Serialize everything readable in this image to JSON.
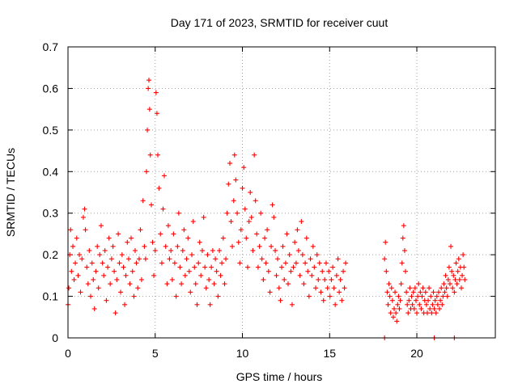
{
  "chart_data": {
    "type": "scatter",
    "title": "Day 171 of 2023, SRMTID for receiver cuut",
    "xlabel": "GPS time / hours",
    "ylabel": "SRMTID / TECUs",
    "xlim": [
      0,
      24.5
    ],
    "ylim": [
      0,
      0.7
    ],
    "xticks": [
      0,
      5,
      10,
      15,
      20
    ],
    "xtick_labels": [
      "0",
      "5",
      "10",
      "15",
      "20"
    ],
    "yticks": [
      0,
      0.1,
      0.2,
      0.3,
      0.4,
      0.5,
      0.6,
      0.7
    ],
    "ytick_labels": [
      "0",
      "0.1",
      "0.2",
      "0.3",
      "0.4",
      "0.5",
      "0.6",
      "0.7"
    ],
    "grid": true,
    "marker": "+",
    "series": [
      {
        "name": "SRMTID",
        "color": "#ff0000",
        "points": [
          [
            0.0,
            0.08
          ],
          [
            0.05,
            0.12
          ],
          [
            0.1,
            0.2
          ],
          [
            0.15,
            0.26
          ],
          [
            0.2,
            0.16
          ],
          [
            0.28,
            0.22
          ],
          [
            0.35,
            0.14
          ],
          [
            0.42,
            0.18
          ],
          [
            0.5,
            0.24
          ],
          [
            0.58,
            0.15
          ],
          [
            0.65,
            0.2
          ],
          [
            0.72,
            0.11
          ],
          [
            0.8,
            0.19
          ],
          [
            0.88,
            0.29
          ],
          [
            0.95,
            0.31
          ],
          [
            1.0,
            0.26
          ],
          [
            1.08,
            0.17
          ],
          [
            1.15,
            0.13
          ],
          [
            1.22,
            0.21
          ],
          [
            1.3,
            0.1
          ],
          [
            1.38,
            0.18
          ],
          [
            1.45,
            0.14
          ],
          [
            1.52,
            0.07
          ],
          [
            1.6,
            0.16
          ],
          [
            1.68,
            0.22
          ],
          [
            1.75,
            0.12
          ],
          [
            1.82,
            0.2
          ],
          [
            1.9,
            0.27
          ],
          [
            1.98,
            0.18
          ],
          [
            2.05,
            0.15
          ],
          [
            2.12,
            0.21
          ],
          [
            2.2,
            0.09
          ],
          [
            2.28,
            0.17
          ],
          [
            2.35,
            0.24
          ],
          [
            2.42,
            0.13
          ],
          [
            2.5,
            0.19
          ],
          [
            2.58,
            0.22
          ],
          [
            2.65,
            0.16
          ],
          [
            2.72,
            0.06
          ],
          [
            2.8,
            0.14
          ],
          [
            2.88,
            0.25
          ],
          [
            2.95,
            0.18
          ],
          [
            3.02,
            0.11
          ],
          [
            3.1,
            0.2
          ],
          [
            3.18,
            0.17
          ],
          [
            3.25,
            0.08
          ],
          [
            3.32,
            0.15
          ],
          [
            3.4,
            0.23
          ],
          [
            3.48,
            0.19
          ],
          [
            3.55,
            0.13
          ],
          [
            3.62,
            0.24
          ],
          [
            3.7,
            0.16
          ],
          [
            3.78,
            0.1
          ],
          [
            3.85,
            0.21
          ],
          [
            3.92,
            0.18
          ],
          [
            4.0,
            0.12
          ],
          [
            4.08,
            0.19
          ],
          [
            4.15,
            0.26
          ],
          [
            4.22,
            0.14
          ],
          [
            4.3,
            0.33
          ],
          [
            4.38,
            0.22
          ],
          [
            4.45,
            0.19
          ],
          [
            4.5,
            0.4
          ],
          [
            4.55,
            0.5
          ],
          [
            4.6,
            0.6
          ],
          [
            4.64,
            0.62
          ],
          [
            4.68,
            0.55
          ],
          [
            4.72,
            0.44
          ],
          [
            4.78,
            0.32
          ],
          [
            4.85,
            0.23
          ],
          [
            4.92,
            0.15
          ],
          [
            5.0,
            0.21
          ],
          [
            5.05,
            0.59
          ],
          [
            5.1,
            0.54
          ],
          [
            5.15,
            0.44
          ],
          [
            5.22,
            0.36
          ],
          [
            5.3,
            0.25
          ],
          [
            5.38,
            0.18
          ],
          [
            5.45,
            0.31
          ],
          [
            5.52,
            0.39
          ],
          [
            5.6,
            0.22
          ],
          [
            5.68,
            0.13
          ],
          [
            5.75,
            0.27
          ],
          [
            5.82,
            0.19
          ],
          [
            5.9,
            0.21
          ],
          [
            5.98,
            0.14
          ],
          [
            6.05,
            0.25
          ],
          [
            6.12,
            0.18
          ],
          [
            6.2,
            0.1
          ],
          [
            6.28,
            0.22
          ],
          [
            6.35,
            0.3
          ],
          [
            6.42,
            0.17
          ],
          [
            6.5,
            0.13
          ],
          [
            6.58,
            0.21
          ],
          [
            6.65,
            0.26
          ],
          [
            6.72,
            0.15
          ],
          [
            6.8,
            0.19
          ],
          [
            6.88,
            0.24
          ],
          [
            6.95,
            0.16
          ],
          [
            7.02,
            0.11
          ],
          [
            7.1,
            0.2
          ],
          [
            7.18,
            0.28
          ],
          [
            7.25,
            0.17
          ],
          [
            7.32,
            0.13
          ],
          [
            7.4,
            0.08
          ],
          [
            7.48,
            0.18
          ],
          [
            7.55,
            0.23
          ],
          [
            7.62,
            0.15
          ],
          [
            7.7,
            0.21
          ],
          [
            7.78,
            0.29
          ],
          [
            7.85,
            0.17
          ],
          [
            7.92,
            0.12
          ],
          [
            8.0,
            0.2
          ],
          [
            8.08,
            0.14
          ],
          [
            8.15,
            0.08
          ],
          [
            8.22,
            0.17
          ],
          [
            8.3,
            0.21
          ],
          [
            8.38,
            0.13
          ],
          [
            8.45,
            0.19
          ],
          [
            8.52,
            0.16
          ],
          [
            8.6,
            0.1
          ],
          [
            8.68,
            0.21
          ],
          [
            8.75,
            0.15
          ],
          [
            8.82,
            0.18
          ],
          [
            8.9,
            0.24
          ],
          [
            8.98,
            0.13
          ],
          [
            9.05,
            0.19
          ],
          [
            9.12,
            0.3
          ],
          [
            9.2,
            0.37
          ],
          [
            9.28,
            0.42
          ],
          [
            9.35,
            0.28
          ],
          [
            9.42,
            0.22
          ],
          [
            9.5,
            0.33
          ],
          [
            9.55,
            0.44
          ],
          [
            9.62,
            0.38
          ],
          [
            9.7,
            0.3
          ],
          [
            9.78,
            0.23
          ],
          [
            9.85,
            0.18
          ],
          [
            9.92,
            0.26
          ],
          [
            10.0,
            0.36
          ],
          [
            10.08,
            0.41
          ],
          [
            10.15,
            0.31
          ],
          [
            10.22,
            0.24
          ],
          [
            10.3,
            0.17
          ],
          [
            10.38,
            0.28
          ],
          [
            10.45,
            0.35
          ],
          [
            10.52,
            0.29
          ],
          [
            10.6,
            0.21
          ],
          [
            10.68,
            0.44
          ],
          [
            10.75,
            0.33
          ],
          [
            10.82,
            0.25
          ],
          [
            10.9,
            0.17
          ],
          [
            10.98,
            0.22
          ],
          [
            11.05,
            0.3
          ],
          [
            11.12,
            0.19
          ],
          [
            11.2,
            0.14
          ],
          [
            11.28,
            0.24
          ],
          [
            11.35,
            0.18
          ],
          [
            11.42,
            0.26
          ],
          [
            11.5,
            0.16
          ],
          [
            11.58,
            0.11
          ],
          [
            11.65,
            0.22
          ],
          [
            11.72,
            0.32
          ],
          [
            11.8,
            0.29
          ],
          [
            11.88,
            0.21
          ],
          [
            11.95,
            0.15
          ],
          [
            12.02,
            0.19
          ],
          [
            12.1,
            0.12
          ],
          [
            12.18,
            0.09
          ],
          [
            12.25,
            0.17
          ],
          [
            12.32,
            0.22
          ],
          [
            12.4,
            0.14
          ],
          [
            12.48,
            0.18
          ],
          [
            12.55,
            0.25
          ],
          [
            12.62,
            0.13
          ],
          [
            12.7,
            0.2
          ],
          [
            12.78,
            0.16
          ],
          [
            12.85,
            0.08
          ],
          [
            12.92,
            0.17
          ],
          [
            13.0,
            0.23
          ],
          [
            13.08,
            0.18
          ],
          [
            13.15,
            0.26
          ],
          [
            13.22,
            0.21
          ],
          [
            13.3,
            0.15
          ],
          [
            13.38,
            0.28
          ],
          [
            13.45,
            0.2
          ],
          [
            13.52,
            0.13
          ],
          [
            13.6,
            0.18
          ],
          [
            13.68,
            0.24
          ],
          [
            13.75,
            0.16
          ],
          [
            13.82,
            0.1
          ],
          [
            13.9,
            0.19
          ],
          [
            13.98,
            0.15
          ],
          [
            14.05,
            0.22
          ],
          [
            14.12,
            0.17
          ],
          [
            14.2,
            0.12
          ],
          [
            14.28,
            0.2
          ],
          [
            14.35,
            0.14
          ],
          [
            14.42,
            0.18
          ],
          [
            14.5,
            0.11
          ],
          [
            14.58,
            0.16
          ],
          [
            14.65,
            0.09
          ],
          [
            14.72,
            0.14
          ],
          [
            14.8,
            0.18
          ],
          [
            14.88,
            0.12
          ],
          [
            14.95,
            0.16
          ],
          [
            15.02,
            0.1
          ],
          [
            15.1,
            0.14
          ],
          [
            15.18,
            0.17
          ],
          [
            15.25,
            0.12
          ],
          [
            15.32,
            0.08
          ],
          [
            15.4,
            0.15
          ],
          [
            15.48,
            0.19
          ],
          [
            15.55,
            0.11
          ],
          [
            15.62,
            0.14
          ],
          [
            15.7,
            0.09
          ],
          [
            15.78,
            0.16
          ],
          [
            15.85,
            0.12
          ],
          [
            15.92,
            0.18
          ],
          [
            18.15,
            0.19
          ],
          [
            18.2,
            0.23
          ],
          [
            18.25,
            0.16
          ],
          [
            18.3,
            0.11
          ],
          [
            18.35,
            0.08
          ],
          [
            18.4,
            0.13
          ],
          [
            18.45,
            0.1
          ],
          [
            18.5,
            0.06
          ],
          [
            18.55,
            0.12
          ],
          [
            18.6,
            0.09
          ],
          [
            18.65,
            0.05
          ],
          [
            18.7,
            0.07
          ],
          [
            18.75,
            0.11
          ],
          [
            18.8,
            0.06
          ],
          [
            18.85,
            0.04
          ],
          [
            18.9,
            0.08
          ],
          [
            18.95,
            0.1
          ],
          [
            19.0,
            0.07
          ],
          [
            19.05,
            0.09
          ],
          [
            19.1,
            0.13
          ],
          [
            19.15,
            0.18
          ],
          [
            19.2,
            0.24
          ],
          [
            19.25,
            0.27
          ],
          [
            19.3,
            0.21
          ],
          [
            19.35,
            0.16
          ],
          [
            19.4,
            0.11
          ],
          [
            19.45,
            0.08
          ],
          [
            19.5,
            0.06
          ],
          [
            19.55,
            0.09
          ],
          [
            19.6,
            0.12
          ],
          [
            19.65,
            0.07
          ],
          [
            19.7,
            0.1
          ],
          [
            19.75,
            0.08
          ],
          [
            19.8,
            0.11
          ],
          [
            19.85,
            0.07
          ],
          [
            19.9,
            0.12
          ],
          [
            19.95,
            0.09
          ],
          [
            20.0,
            0.06
          ],
          [
            20.05,
            0.1
          ],
          [
            20.1,
            0.13
          ],
          [
            20.15,
            0.08
          ],
          [
            20.2,
            0.11
          ],
          [
            20.25,
            0.07
          ],
          [
            20.3,
            0.1
          ],
          [
            20.35,
            0.12
          ],
          [
            20.4,
            0.06
          ],
          [
            20.45,
            0.09
          ],
          [
            20.5,
            0.11
          ],
          [
            20.55,
            0.08
          ],
          [
            20.6,
            0.06
          ],
          [
            20.65,
            0.09
          ],
          [
            20.7,
            0.12
          ],
          [
            20.75,
            0.07
          ],
          [
            20.8,
            0.1
          ],
          [
            20.85,
            0.06
          ],
          [
            20.9,
            0.08
          ],
          [
            20.95,
            0.11
          ],
          [
            21.0,
            0.07
          ],
          [
            21.05,
            0.09
          ],
          [
            21.1,
            0.06
          ],
          [
            21.15,
            0.1
          ],
          [
            21.2,
            0.08
          ],
          [
            21.25,
            0.11
          ],
          [
            21.3,
            0.07
          ],
          [
            21.35,
            0.09
          ],
          [
            21.4,
            0.12
          ],
          [
            21.45,
            0.08
          ],
          [
            21.5,
            0.1
          ],
          [
            21.55,
            0.13
          ],
          [
            21.6,
            0.11
          ],
          [
            21.65,
            0.15
          ],
          [
            21.7,
            0.12
          ],
          [
            21.75,
            0.1
          ],
          [
            21.8,
            0.14
          ],
          [
            21.85,
            0.17
          ],
          [
            21.9,
            0.13
          ],
          [
            21.95,
            0.22
          ],
          [
            22.0,
            0.16
          ],
          [
            22.05,
            0.12
          ],
          [
            22.1,
            0.15
          ],
          [
            22.15,
            0.11
          ],
          [
            22.2,
            0.14
          ],
          [
            22.25,
            0.18
          ],
          [
            22.3,
            0.13
          ],
          [
            22.35,
            0.16
          ],
          [
            22.4,
            0.19
          ],
          [
            22.45,
            0.14
          ],
          [
            22.5,
            0.17
          ],
          [
            22.55,
            0.12
          ],
          [
            22.6,
            0.15
          ],
          [
            22.65,
            0.2
          ],
          [
            22.7,
            0.17
          ],
          [
            22.75,
            0.14
          ]
        ]
      }
    ],
    "axis_markers": [
      {
        "x": 18.15,
        "y": 0
      },
      {
        "x": 21.0,
        "y": 0
      },
      {
        "x": 22.15,
        "y": 0
      }
    ]
  }
}
